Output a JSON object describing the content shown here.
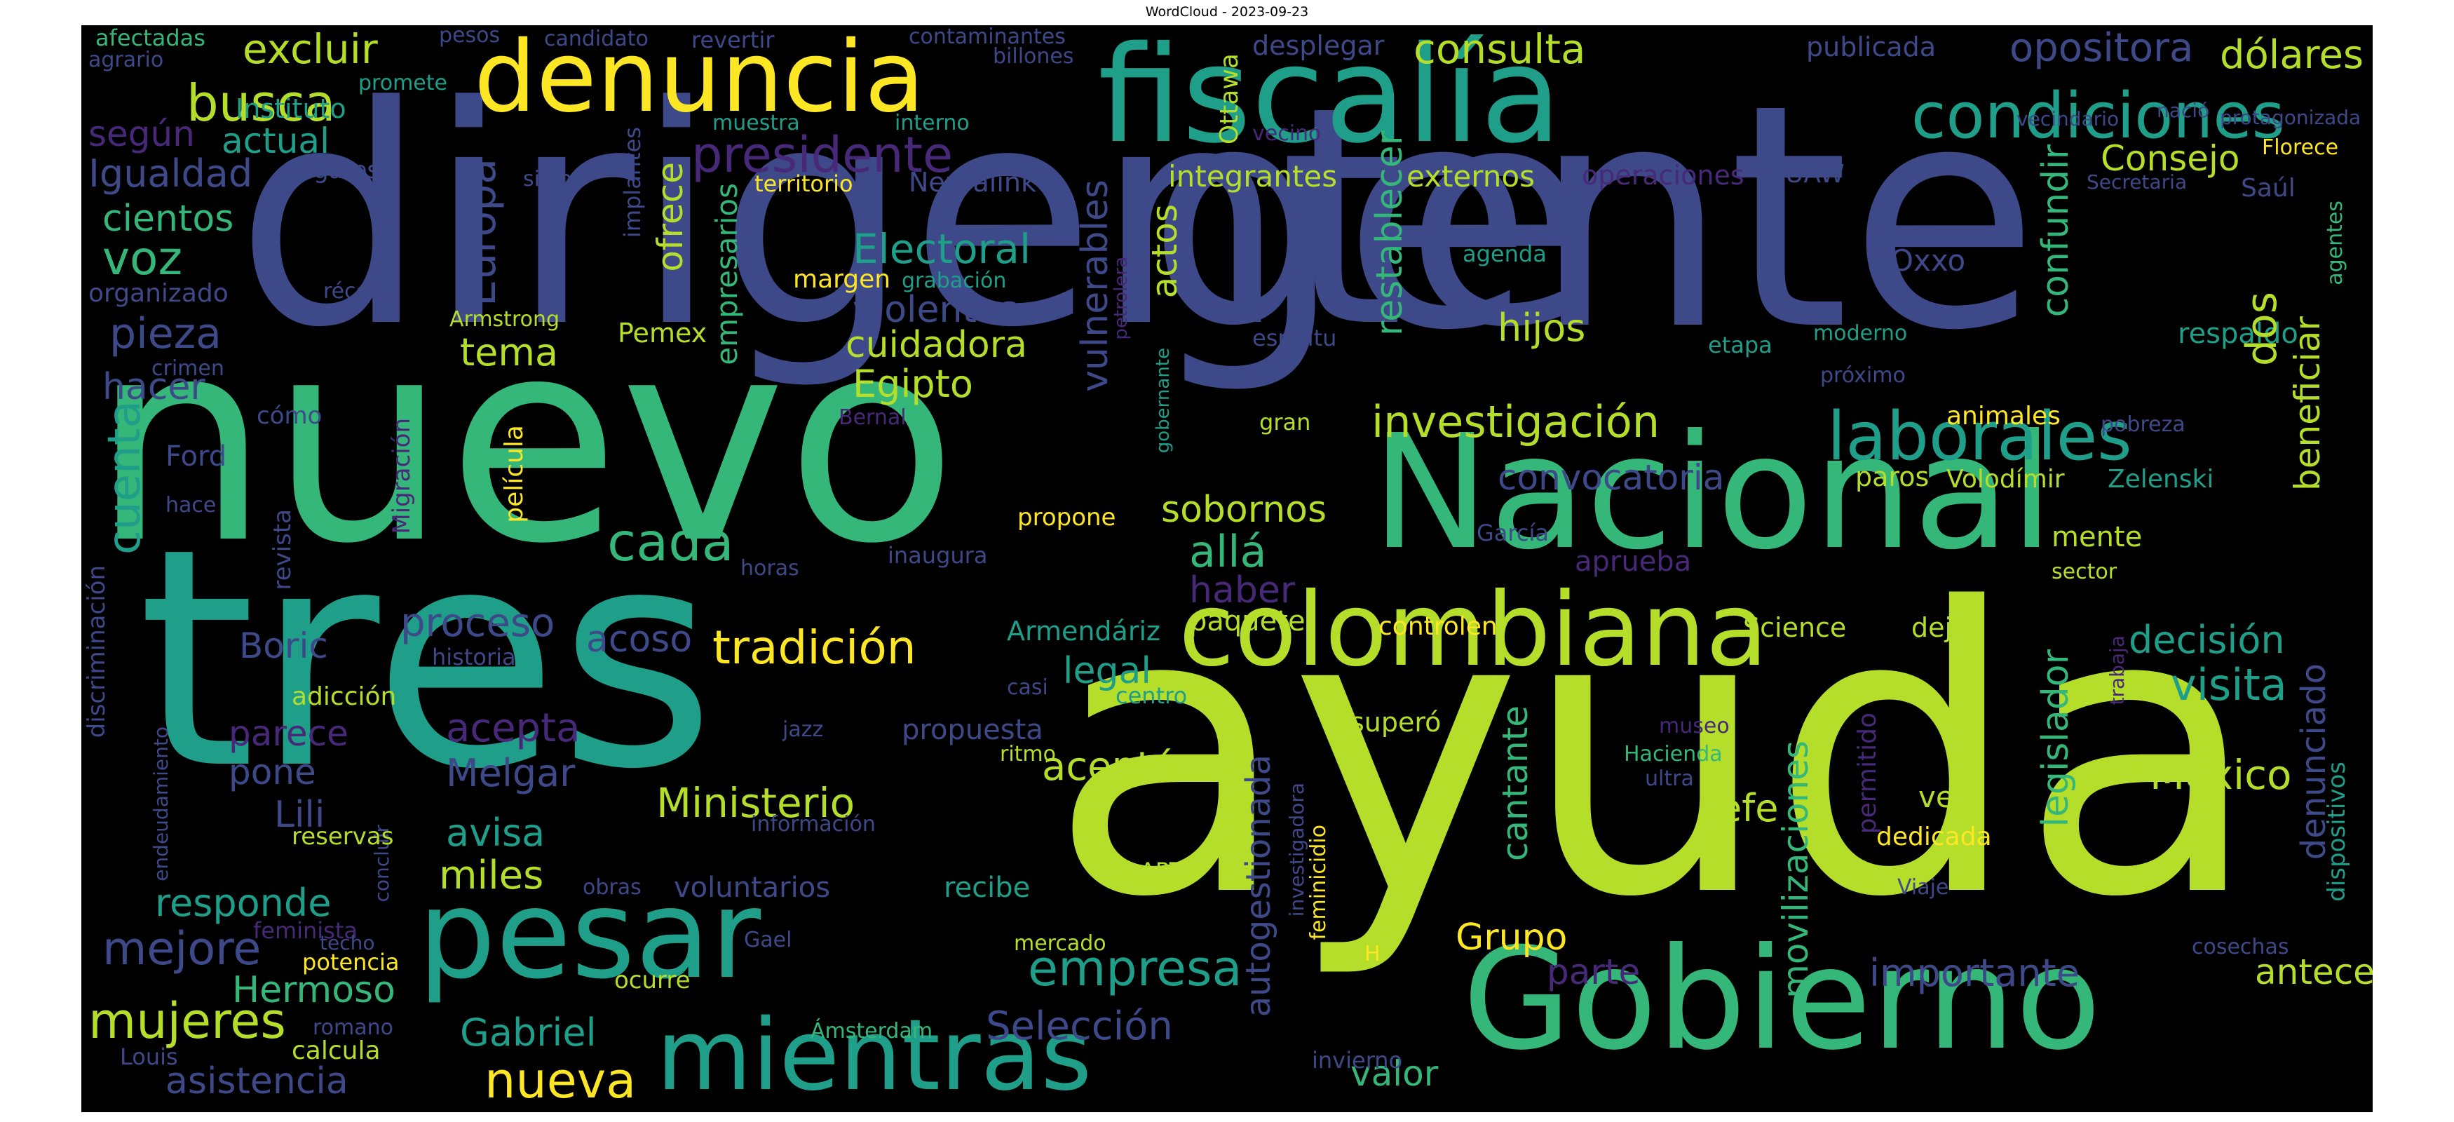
{
  "title": "WordCloud - 2023-09-23",
  "palette": {
    "background": "#000000",
    "yellow": "#fde725",
    "lime": "#b5de2b",
    "green": "#35b779",
    "teal": "#1f9e89",
    "blue": "#31688e",
    "indigo": "#3e4989",
    "purple": "#482878",
    "lightgreen": "#6ece58"
  },
  "words": {
    "dirigente": "dirigente",
    "nuevo": "nuevo",
    "tres": "tres",
    "ayuda": "ayuda",
    "gente": "gente",
    "fiscalia": "fiscalía",
    "nacional": "Nacional",
    "gobierno": "Gobierno",
    "pesar": "pesar",
    "colombiana": "colombiana",
    "mientras": "mientras",
    "denuncia": "denuncia",
    "condiciones": "condiciones",
    "laborales": "laborales",
    "presidente": "presidente",
    "investigacion": "investigación",
    "tradicion": "tradición",
    "cada": "cada",
    "allá": "allá",
    "electoral": "Electoral",
    "ministerio": "Ministerio",
    "empresa": "empresa",
    "seleccion": "Selección",
    "nueva": "nueva",
    "mujeres": "mujeres",
    "mejore": "mejore",
    "busca": "busca",
    "excluir": "excluir",
    "consulta": "consulta",
    "opositora": "opositora",
    "dolares": "dólares",
    "consejo": "Consejo",
    "decision": "decisión",
    "visita": "visita",
    "mexico": "México",
    "antecesor": "antecesor",
    "importante": "importante",
    "grupo": "Grupo",
    "parte": "parte",
    "valor": "valor",
    "aceptó": "aceptó",
    "acepta": "acepta",
    "melgar": "Melgar",
    "avisa": "avisa",
    "miles": "miles",
    "responde": "responde",
    "hermoso": "Hermoso",
    "gabriel": "Gabriel",
    "asistencia": "asistencia",
    "cuenta": "cuenta",
    "pieza": "pieza",
    "voz": "voz",
    "cientos": "cientos",
    "igualdad": "Igualdad",
    "actual": "actual",
    "segun": "según",
    "hacer": "hacer",
    "proceso": "proceso",
    "acoso": "acoso",
    "boric": "Boric",
    "parece": "parece",
    "pone": "pone",
    "lili": "Lili",
    "legal": "legal",
    "hijos": "hijos",
    "tema": "tema",
    "convocatoria": "convocatoria",
    "sobornos": "sobornos",
    "haber": "haber",
    "violentos": "violentos",
    "cuidadora": "cuidadora",
    "egipto": "Egipto",
    "integrantes": "integrantes",
    "externos": "externos",
    "jefe": "jefe",
    "cantante": "cantante",
    "respaldo": "respaldo",
    "ver": "ver",
    "dos": "dos",
    "europa": "Europa",
    "ofrece": "ofrece",
    "empresarios": "empresarios",
    "vulnerables": "vulnerables",
    "actos": "actos",
    "restablecer": "restablecer",
    "confundir": "confundir",
    "beneficiar": "beneficiar",
    "legislador": "legislador",
    "denunciado": "denunciado",
    "movilizaciones": "movilizaciones",
    "autogestionada": "autogestionada",
    "ottawa": "Ottawa",
    "instituto": "Instituto",
    "organizado": "organizado",
    "propuesta": "propuesta",
    "voluntarios": "voluntarios",
    "recibe": "recibe",
    "mente": "mente",
    "aprueba": "aprueba",
    "paquete": "paquete",
    "armendariz": "Armendáriz",
    "controlen": "controlen",
    "science": "Science",
    "deja": "deja",
    "supero": "superó",
    "animales": "animales",
    "paros": "paros",
    "volodimir": "Volodímir",
    "zelenski": "Zelenski",
    "garcia": "García",
    "oxxo": "Oxxo",
    "uaw": "UAW",
    "neuralink": "Neuralink",
    "operaciones": "operaciones",
    "margen": "margen",
    "grabacion": "grabación",
    "pemex": "Pemex",
    "armstrong": "Armstrong",
    "territorio": "territorio",
    "dedicada": "dedicada",
    "ford": "Ford",
    "propone": "propone",
    "pelicula": "película",
    "revista": "revista",
    "migracion": "Migración",
    "discriminacion": "discriminación",
    "endeudamiento": "endeudamiento",
    "adiccion": "adicción",
    "reservas": "reservas",
    "concluir": "concluir",
    "feminista": "feminista",
    "potencia": "potencia",
    "techo": "techo",
    "romano": "romano",
    "calcula": "calcula",
    "louis": "Louis",
    "ocurre": "ocurre",
    "gael": "Gael",
    "amsterdam": "Ámsterdam",
    "invierno": "invierno",
    "feminicidio": "feminicidio",
    "investigadora": "investigadora",
    "obras": "obras",
    "art": "ART",
    "mercado": "mercado",
    "informacion": "información",
    "ritmo": "ritmo",
    "jazz": "jazz",
    "casi": "casi",
    "centro": "centro",
    "historia": "historia",
    "horas": "horas",
    "inaugura": "inaugura",
    "bernal": "Bernal",
    "gran": "gran",
    "espiritu": "espíritu",
    "agenda": "agenda",
    "etapa": "etapa",
    "moderno": "moderno",
    "proximo": "próximo",
    "pobreza": "pobreza",
    "sector": "sector",
    "museo": "museo",
    "hacienda": "Hacienda",
    "ultra": "ultra",
    "viaje": "Viaje",
    "cosechas": "cosechas",
    "permitido": "permitido",
    "dispositivos": "dispositivos",
    "trabaja": "trabaja",
    "saul": "Saúl",
    "agentes": "agentes",
    "secretaria": "Secretaria",
    "florece": "Florece",
    "vecindario": "vecindario",
    "nacio": "nació",
    "protagonizada": "protagonizada",
    "publicada": "publicada",
    "desplegar": "desplegar",
    "contaminantes": "contaminantes",
    "billones": "billones",
    "revertir": "revertir",
    "candidato": "candidato",
    "pesos": "pesos",
    "afectadas": "afectadas",
    "agrario": "agrario",
    "promete": "promete",
    "lugares": "lugares",
    "siglo": "siglo",
    "implantes": "implantes",
    "muestra": "muestra",
    "interno": "interno",
    "vecino": "vecino",
    "petrolera": "petrolera",
    "gobernante": "gobernante",
    "record": "récord",
    "crimen": "crimen",
    "como": "cómo",
    "hace": "hace",
    "h": "H"
  }
}
